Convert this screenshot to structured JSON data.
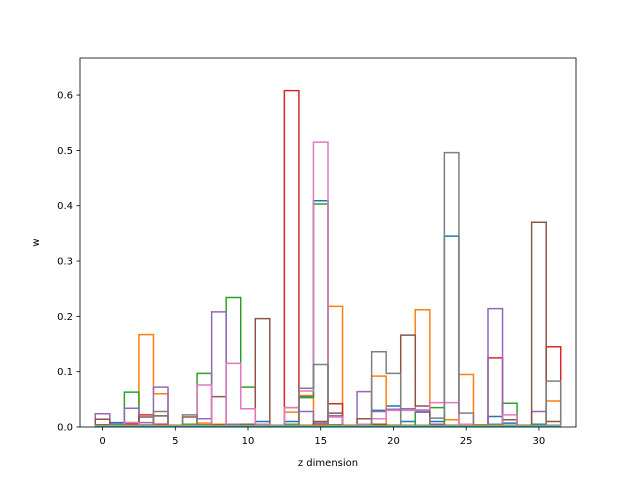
{
  "chart_data": {
    "type": "histogram-step",
    "title": "",
    "xlabel": "z dimension",
    "ylabel": "w",
    "xlim": [
      -1.55,
      32.55
    ],
    "ylim": [
      0,
      0.667
    ],
    "xticks": [
      0,
      5,
      10,
      15,
      20,
      25,
      30
    ],
    "yticks": [
      0.0,
      0.1,
      0.2,
      0.3,
      0.4,
      0.5,
      0.6
    ],
    "bin_width": 1,
    "grid": false,
    "legend": "none",
    "series": [
      {
        "color": "#1f77b4",
        "values": [
          0.002,
          0.008,
          0.003,
          0.004,
          0.003,
          0.002,
          0.005,
          0.004,
          0.003,
          0.004,
          0.003,
          0.01,
          0.002,
          0.01,
          0.055,
          0.409,
          0.02,
          0.003,
          0.004,
          0.03,
          0.038,
          0.01,
          0.027,
          0.01,
          0.345,
          0.003,
          0.002,
          0.019,
          0.007,
          0.003,
          0.005,
          0.003
        ]
      },
      {
        "color": "#ff7f0e",
        "values": [
          0.004,
          0.003,
          0.005,
          0.167,
          0.06,
          0.003,
          0.003,
          0.007,
          0.005,
          0.003,
          0.003,
          0.004,
          0.003,
          0.027,
          0.057,
          0.005,
          0.218,
          0.003,
          0.003,
          0.092,
          0.002,
          0.003,
          0.212,
          0.003,
          0.013,
          0.095,
          0.004,
          0.003,
          0.003,
          0.002,
          0.003,
          0.047
        ]
      },
      {
        "color": "#2ca02c",
        "values": [
          0.002,
          0.003,
          0.063,
          0.004,
          0.003,
          0.002,
          0.005,
          0.097,
          0.003,
          0.234,
          0.072,
          0.004,
          0.002,
          0.003,
          0.053,
          0.403,
          0.003,
          0.002,
          0.003,
          0.003,
          0.003,
          0.002,
          0.03,
          0.035,
          0.003,
          0.002,
          0.003,
          0.003,
          0.043,
          0.002,
          0.003,
          0.002
        ]
      },
      {
        "color": "#d62728",
        "values": [
          0.004,
          0.005,
          0.006,
          0.022,
          0.005,
          0.003,
          0.003,
          0.003,
          0.004,
          0.003,
          0.003,
          0.003,
          0.003,
          0.608,
          0.003,
          0.003,
          0.042,
          0.003,
          0.003,
          0.003,
          0.003,
          0.003,
          0.003,
          0.003,
          0.003,
          0.003,
          0.003,
          0.125,
          0.003,
          0.003,
          0.002,
          0.145
        ]
      },
      {
        "color": "#9467bd",
        "values": [
          0.024,
          0.005,
          0.034,
          0.008,
          0.072,
          0.002,
          0.003,
          0.015,
          0.208,
          0.005,
          0.003,
          0.003,
          0.003,
          0.035,
          0.028,
          0.007,
          0.02,
          0.002,
          0.064,
          0.028,
          0.032,
          0.033,
          0.028,
          0.005,
          0.003,
          0.003,
          0.003,
          0.214,
          0.013,
          0.003,
          0.028,
          0.003
        ]
      },
      {
        "color": "#8c564b",
        "values": [
          0.014,
          0.003,
          0.008,
          0.018,
          0.02,
          0.002,
          0.018,
          0.003,
          0.055,
          0.003,
          0.005,
          0.196,
          0.002,
          0.005,
          0.003,
          0.01,
          0.025,
          0.002,
          0.015,
          0.005,
          0.003,
          0.166,
          0.038,
          0.003,
          0.003,
          0.003,
          0.003,
          0.003,
          0.013,
          0.003,
          0.37,
          0.01
        ]
      },
      {
        "color": "#e377c2",
        "values": [
          0.003,
          0.003,
          0.008,
          0.004,
          0.003,
          0.002,
          0.003,
          0.076,
          0.003,
          0.115,
          0.033,
          0.005,
          0.002,
          0.035,
          0.065,
          0.515,
          0.018,
          0.002,
          0.005,
          0.015,
          0.03,
          0.03,
          0.031,
          0.044,
          0.044,
          0.005,
          0.002,
          0.003,
          0.022,
          0.002,
          0.003,
          0.002
        ]
      },
      {
        "color": "#7f7f7f",
        "values": [
          0.003,
          0.004,
          0.003,
          0.003,
          0.028,
          0.002,
          0.022,
          0.004,
          0.003,
          0.003,
          0.003,
          0.003,
          0.002,
          0.005,
          0.07,
          0.113,
          0.004,
          0.002,
          0.003,
          0.136,
          0.097,
          0.003,
          0.003,
          0.016,
          0.496,
          0.025,
          0.003,
          0.005,
          0.003,
          0.002,
          0.003,
          0.083
        ]
      },
      {
        "color": "#bcbd22",
        "values": [
          0.002,
          0.002,
          0.002,
          0.002,
          0.002,
          0.002,
          0.002,
          0.002,
          0.002,
          0.002,
          0.002,
          0.002,
          0.002,
          0.002,
          0.002,
          0.002,
          0.002,
          0.002,
          0.002,
          0.002,
          0.002,
          0.002,
          0.002,
          0.002,
          0.002,
          0.002,
          0.002,
          0.002,
          0.002,
          0.002,
          0.002,
          0.002
        ]
      },
      {
        "color": "#17becf",
        "values": [
          0.001,
          0.001,
          0.001,
          0.001,
          0.001,
          0.001,
          0.001,
          0.001,
          0.001,
          0.001,
          0.001,
          0.001,
          0.001,
          0.001,
          0.001,
          0.001,
          0.001,
          0.001,
          0.001,
          0.001,
          0.001,
          0.001,
          0.001,
          0.001,
          0.001,
          0.001,
          0.001,
          0.001,
          0.001,
          0.001,
          0.001,
          0.001
        ]
      }
    ]
  }
}
